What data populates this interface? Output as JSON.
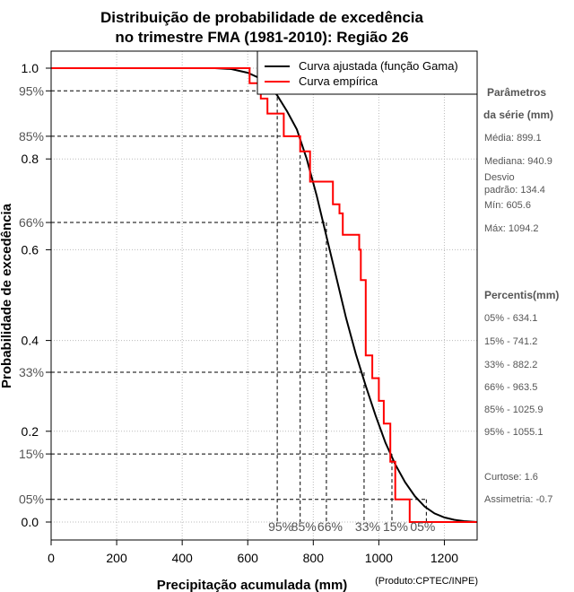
{
  "chart_data": {
    "type": "line",
    "title": [
      "Distribuição de probabilidade de excedência",
      "no trimestre FMA (1981-2010): Região 26"
    ],
    "xlabel": "Precipitação acumulada (mm)",
    "ylabel": "Probabilidade de excedência",
    "credit": "(Produto:CPTEC/INPE)",
    "xlim": [
      0,
      1300
    ],
    "ylim": [
      -0.05,
      1.05
    ],
    "x_ticks": [
      "0",
      "200",
      "400",
      "600",
      "800",
      "1000",
      "1200"
    ],
    "y_ticks": [
      "0.0",
      "0.2",
      "0.4",
      "0.6",
      "0.8",
      "1.0"
    ],
    "pct_y_ticks": [
      "95%",
      "85%",
      "66%",
      "33%",
      "15%",
      "05%"
    ],
    "pct_x_labels": [
      "05%",
      "15%",
      "33%",
      "66%",
      "85%",
      "95%"
    ],
    "grid": true,
    "legend": {
      "position": "top-right",
      "entries": [
        "Curva ajustada (função Gama)",
        "Curva empírica"
      ]
    },
    "colors": {
      "fitted": "#000000",
      "empirical": "#ff0000",
      "guides": "#000000",
      "grid": "#bbbbbb"
    },
    "series": [
      {
        "name": "Curva ajustada (função Gama)",
        "x": [
          0,
          500,
          550,
          600,
          630,
          660,
          690,
          720,
          750,
          780,
          810,
          840,
          870,
          900,
          930,
          960,
          990,
          1020,
          1050,
          1080,
          1110,
          1140,
          1170,
          1200,
          1230,
          1260,
          1300
        ],
        "y": [
          1.0,
          1.0,
          0.998,
          0.99,
          0.98,
          0.965,
          0.94,
          0.905,
          0.865,
          0.8,
          0.72,
          0.63,
          0.54,
          0.45,
          0.37,
          0.3,
          0.235,
          0.175,
          0.127,
          0.088,
          0.057,
          0.034,
          0.019,
          0.01,
          0.005,
          0.002,
          0.0
        ]
      },
      {
        "name": "Curva empírica",
        "x": [
          0,
          605.6,
          605.6,
          640,
          640,
          660,
          660,
          710,
          710,
          760,
          760,
          790,
          790,
          860,
          860,
          880,
          880,
          890,
          890,
          940,
          940,
          945,
          945,
          960,
          960,
          980,
          980,
          1000,
          1000,
          1015,
          1015,
          1035,
          1035,
          1050,
          1050,
          1094.2,
          1094.2,
          1300
        ],
        "y": [
          1.0,
          1.0,
          0.967,
          0.967,
          0.933,
          0.933,
          0.9,
          0.9,
          0.85,
          0.85,
          0.8167,
          0.8167,
          0.75,
          0.75,
          0.7,
          0.7,
          0.68,
          0.68,
          0.633,
          0.633,
          0.6,
          0.6,
          0.533,
          0.533,
          0.367,
          0.367,
          0.317,
          0.317,
          0.267,
          0.267,
          0.217,
          0.217,
          0.133,
          0.133,
          0.05,
          0.05,
          0.0,
          0.0
        ]
      }
    ],
    "percentile_guides": [
      {
        "label": "95%",
        "prob": 0.95,
        "precip": 690
      },
      {
        "label": "85%",
        "prob": 0.85,
        "precip": 760
      },
      {
        "label": "66%",
        "prob": 0.66,
        "precip": 840
      },
      {
        "label": "33%",
        "prob": 0.33,
        "precip": 955
      },
      {
        "label": "15%",
        "prob": 0.15,
        "precip": 1040
      },
      {
        "label": "05%",
        "prob": 0.05,
        "precip": 1145
      }
    ]
  },
  "side_panel": {
    "params_heading_1": "Parâmetros",
    "params_heading_2": "da série (mm)",
    "media": "Média: 899.1",
    "mediana": "Mediana: 940.9",
    "desvio_1": "Desvio",
    "desvio_2": "padrão: 134.4",
    "min": "Mín: 605.6",
    "max": "Máx: 1094.2",
    "percentis_heading": "Percentis(mm)",
    "percentis": [
      "05% - 634.1",
      "15% - 741.2",
      "33% - 882.2",
      "66% - 963.5",
      "85% - 1025.9",
      "95% - 1055.1"
    ],
    "curtose": "Curtose: 1.6",
    "assimetria": "Assimetria: -0.7"
  }
}
